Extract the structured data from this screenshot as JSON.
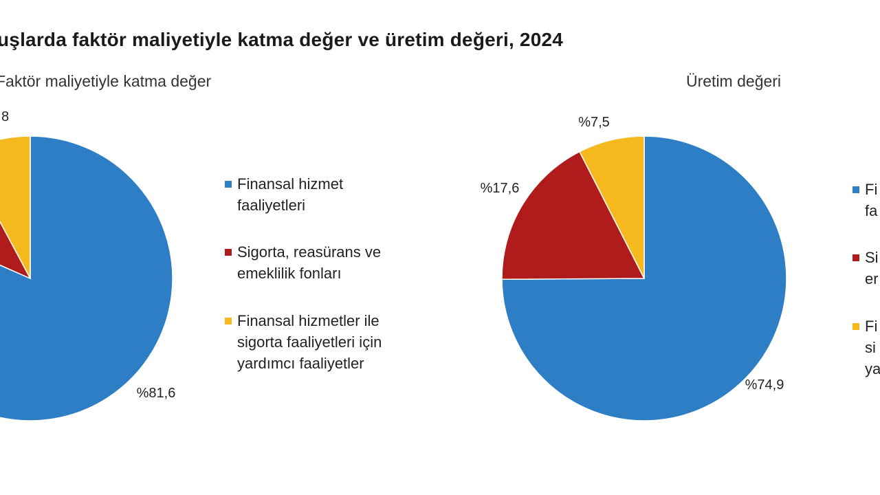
{
  "title": "uşlarda faktör maliyetiyle katma değer ve üretim değeri, 2024",
  "colors": {
    "finansal": "#2e7ec6",
    "sigorta": "#b01c1c",
    "yardimci": "#f6b81f"
  },
  "chart_data": [
    {
      "type": "pie",
      "title": "Faktör maliyetiyle katma değer",
      "slices": [
        {
          "label": "Finansal hizmet faaliyetleri",
          "value": 81.6,
          "value_label": "%81,6",
          "color": "#2e7ec6"
        },
        {
          "label": "Sigorta, reasürans ve emeklilik fonları",
          "value": 10.6,
          "value_label": "",
          "color": "#b01c1c"
        },
        {
          "label": "Finansal hizmetler ile sigorta faaliyetleri için yardımcı faaliyetler",
          "value": 7.8,
          "value_label": "8",
          "color": "#f6b81f"
        }
      ],
      "legend": {
        "position": "right",
        "entries": [
          {
            "line1": "Finansal hizmet",
            "line2": "faaliyetleri",
            "line3": ""
          },
          {
            "line1": "Sigorta, reasürans ve",
            "line2": "emeklilik fonları",
            "line3": ""
          },
          {
            "line1": "Finansal hizmetler ile",
            "line2": "sigorta faaliyetleri için",
            "line3": "yardımcı faaliyetler"
          }
        ]
      }
    },
    {
      "type": "pie",
      "title": "Üretim değeri",
      "slices": [
        {
          "label": "Finansal hizmet faaliyetleri",
          "value": 74.9,
          "value_label": "%74,9",
          "color": "#2e7ec6"
        },
        {
          "label": "Sigorta, reasürans ve emeklilik fonları",
          "value": 17.6,
          "value_label": "%17,6",
          "color": "#b01c1c"
        },
        {
          "label": "Finansal hizmetler ile sigorta faaliyetleri için yardımcı faaliyetler",
          "value": 7.5,
          "value_label": "%7,5",
          "color": "#f6b81f"
        }
      ],
      "legend": {
        "position": "right",
        "entries": [
          {
            "line1": "Fi",
            "line2": "fa",
            "line3": ""
          },
          {
            "line1": "Si",
            "line2": "er",
            "line3": ""
          },
          {
            "line1": "Fi",
            "line2": "si",
            "line3": "ya"
          }
        ]
      }
    }
  ]
}
